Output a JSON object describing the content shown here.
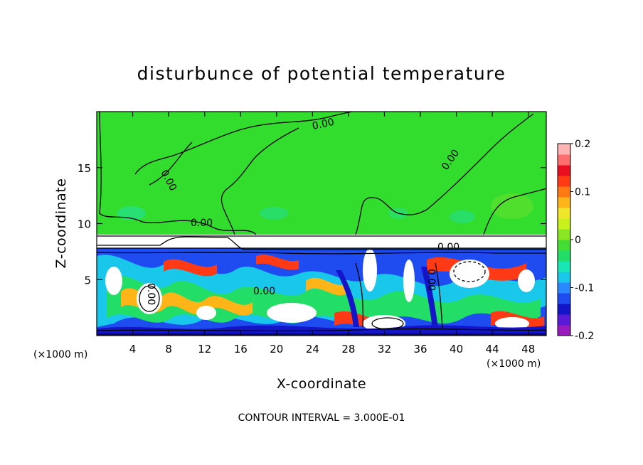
{
  "chart_data": {
    "type": "heatmap",
    "title": "disturbunce of potential temperature",
    "xlabel": "X-coordinate",
    "ylabel": "Z-coordinate",
    "x_unit_left": "(×1000 m)",
    "x_unit_right": "(×1000 m)",
    "xlim": [
      0,
      50
    ],
    "ylim": [
      0,
      20
    ],
    "x_ticks": [
      4,
      8,
      12,
      16,
      20,
      24,
      28,
      32,
      36,
      40,
      44,
      48
    ],
    "y_ticks": [
      5,
      10,
      15
    ],
    "colorbar": {
      "range": [
        -0.2,
        0.2
      ],
      "tick_labels": [
        "0.2",
        "0.1",
        "0",
        "-0.1",
        "-0.2"
      ],
      "tick_values": [
        0.2,
        0.1,
        0,
        -0.1,
        -0.2
      ],
      "colors": [
        "#9a1ac0",
        "#5a1ad8",
        "#1414c8",
        "#1e4cf0",
        "#2a88ff",
        "#19c7ea",
        "#18e6b4",
        "#22dd66",
        "#44dd33",
        "#88e622",
        "#c8f01a",
        "#f0e62a",
        "#ffb418",
        "#ff7a14",
        "#ff3a14",
        "#e81020",
        "#ff6e6e",
        "#ffb4b4"
      ]
    },
    "contour_labels": [
      "0.00",
      "0.00",
      "0.00",
      "0.00",
      "0.00",
      "0.00",
      "0.00",
      "0.00"
    ],
    "footer": "CONTOUR INTERVAL = 3.000E-01"
  }
}
